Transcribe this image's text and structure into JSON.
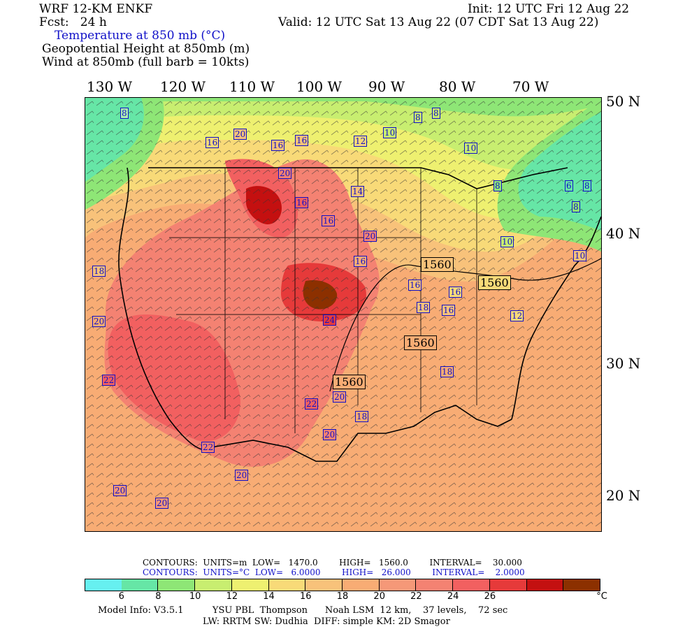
{
  "header": {
    "model": "WRF 12-KM ENKF",
    "fcst": "Fcst:   24 h",
    "init": "Init: 12 UTC Fri 12 Aug 22",
    "valid": "Valid: 12 UTC Sat 13 Aug 22 (07 CDT Sat 13 Aug 22)",
    "field1": "Temperature at 850 mb (°C)",
    "field2": "Geopotential Height at 850mb (m)",
    "field3": "Wind at 850mb (full barb = 10kts)"
  },
  "lon_ticks": [
    "130 W",
    "120 W",
    "110 W",
    "100 W",
    "90 W",
    "80 W",
    "70 W"
  ],
  "lat_ticks": [
    "50 N",
    "40 N",
    "30 N",
    "20 N"
  ],
  "map": {
    "temp_labels": [
      "8",
      "16",
      "20",
      "20",
      "16",
      "16",
      "12",
      "10",
      "8",
      "8",
      "10",
      "8",
      "18",
      "20",
      "16",
      "14",
      "16",
      "6",
      "10",
      "8",
      "8",
      "10",
      "18",
      "20",
      "16",
      "18",
      "16",
      "16",
      "12",
      "20",
      "22",
      "24",
      "16",
      "14",
      "16",
      "14",
      "18",
      "22",
      "20",
      "18",
      "16",
      "12",
      "14",
      "20",
      "22",
      "20",
      "20",
      "20",
      "16",
      "18",
      "22",
      "14"
    ],
    "height_labels": [
      "1560",
      "1560",
      "1560",
      "1560"
    ],
    "temp_label_colors": {
      "border": "#1010c8",
      "text": "#1010c8"
    }
  },
  "stats": {
    "height_line": "CONTOURS:  UNITS=m  LOW=   1470.0        HIGH=   1560.0        INTERVAL=    30.000",
    "temp_line": "CONTOURS:  UNITS=°C  LOW=   6.0000        HIGH=   26.000        INTERVAL=    2.0000"
  },
  "colorbar": {
    "colors": [
      "#66f0f0",
      "#66e6a6",
      "#8ee676",
      "#c8ee70",
      "#eef070",
      "#f8da78",
      "#f8c27a",
      "#f8ac74",
      "#f59878",
      "#f48272",
      "#f26060",
      "#e63a3a",
      "#c41010",
      "#8c3000"
    ],
    "ticks": [
      "6",
      "8",
      "10",
      "12",
      "14",
      "16",
      "18",
      "20",
      "22",
      "24",
      "26"
    ],
    "unit": "°C"
  },
  "footer": {
    "line1": "Model Info: V3.5.1          YSU PBL  Thompson      Noah LSM  12 km,    37 levels,    72 sec",
    "line2": "LW: RRTM SW: Dudhia  DIFF: simple KM: 2D Smagor"
  }
}
